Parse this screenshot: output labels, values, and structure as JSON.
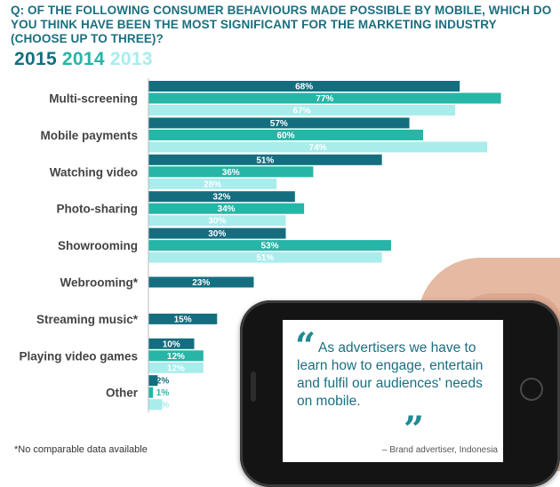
{
  "question": "Q: OF THE FOLLOWING CONSUMER BEHAVIOURS MADE POSSIBLE BY MOBILE, WHICH DO YOU THINK HAVE BEEN THE MOST SIGNIFICANT FOR THE MARKETING INDUSTRY (CHOOSE UP TO THREE)?",
  "legend": [
    {
      "label": "2015",
      "color": "#146e80"
    },
    {
      "label": "2014",
      "color": "#26b5a6"
    },
    {
      "label": "2013",
      "color": "#a9ecec"
    }
  ],
  "footnote": "*No comparable data available",
  "quote": {
    "open_mark": "“",
    "text": "As advertisers we have to learn how to engage, entertain and fulfil our audiences' needs on mobile.",
    "close_mark": "”",
    "source": "– Brand advertiser, Indonesia"
  },
  "chart_data": {
    "type": "bar",
    "orientation": "horizontal",
    "xlim": [
      0,
      100
    ],
    "categories": [
      "Multi-screening",
      "Mobile payments",
      "Watching video",
      "Photo-sharing",
      "Showrooming",
      "Webrooming*",
      "Streaming music*",
      "Playing video games",
      "Other"
    ],
    "series": [
      {
        "name": "2015",
        "color": "#146e80",
        "values": [
          68,
          57,
          51,
          32,
          30,
          23,
          15,
          10,
          2
        ],
        "labels": [
          "68%",
          "57%",
          "51%",
          "32%",
          "30%",
          "23%",
          "15%",
          "10%",
          "2%"
        ]
      },
      {
        "name": "2014",
        "color": "#26b5a6",
        "values": [
          77,
          60,
          36,
          34,
          53,
          null,
          null,
          12,
          1
        ],
        "labels": [
          "77%",
          "60%",
          "36%",
          "34%",
          "53%",
          null,
          null,
          "12%",
          "1%"
        ]
      },
      {
        "name": "2013",
        "color": "#a9ecec",
        "values": [
          67,
          74,
          28,
          30,
          51,
          null,
          null,
          12,
          3
        ],
        "labels": [
          "67%",
          "74%",
          "28%",
          "30%",
          "51%",
          null,
          null,
          "12%",
          "3%"
        ]
      }
    ]
  }
}
